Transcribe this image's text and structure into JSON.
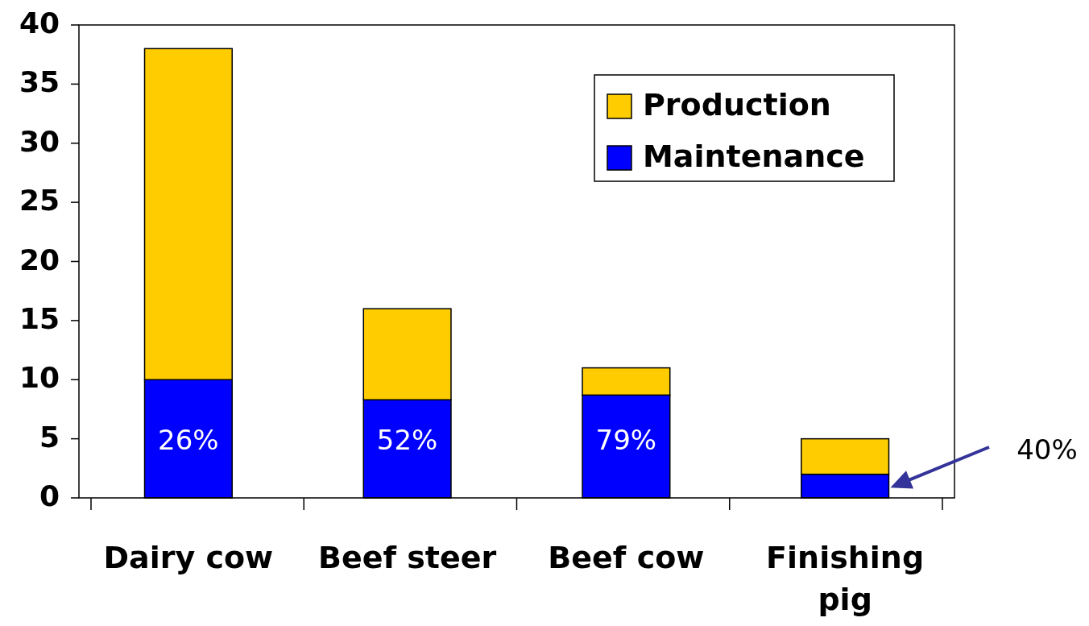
{
  "chart_data": {
    "type": "bar",
    "stacked": true,
    "categories": [
      "Dairy cow",
      "Beef steer",
      "Beef cow",
      "Finishing pig"
    ],
    "series": [
      {
        "name": "Maintenance",
        "color": "#0000ff",
        "values": [
          10,
          8.3,
          8.7,
          2
        ]
      },
      {
        "name": "Production",
        "color": "#ffcc00",
        "values": [
          28,
          7.7,
          2.3,
          3
        ]
      }
    ],
    "ylim": [
      0,
      40
    ],
    "yticks": [
      0,
      5,
      10,
      15,
      20,
      25,
      30,
      35,
      40
    ],
    "grid": false,
    "legend": "top right",
    "annotations": [
      "26%",
      "52%",
      "79%",
      "40%"
    ]
  }
}
